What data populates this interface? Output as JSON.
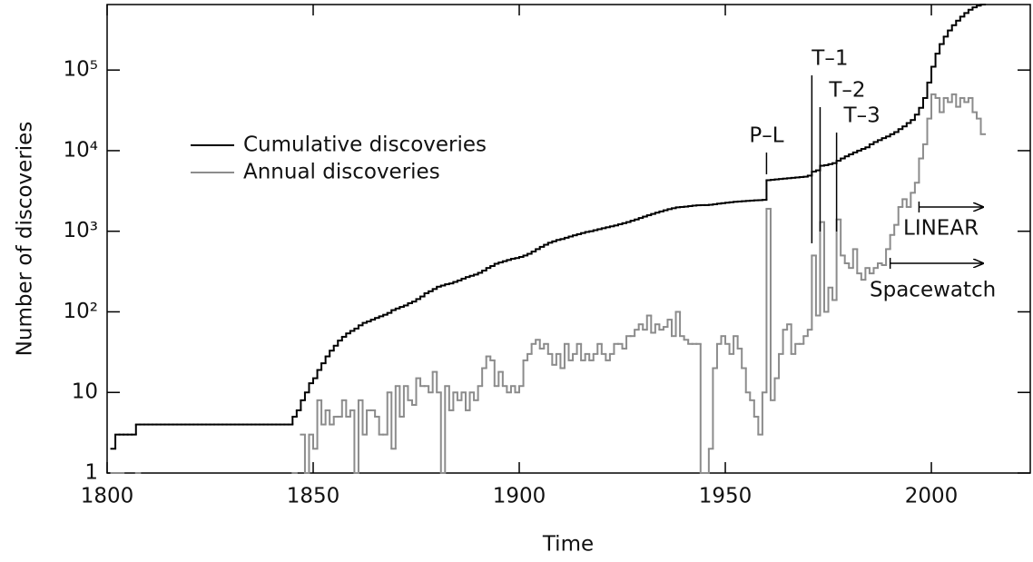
{
  "chart_data": {
    "type": "line",
    "xlabel": "Time",
    "ylabel": "Number of discoveries",
    "log_y": true,
    "xlim": [
      1800,
      2024
    ],
    "ylim": [
      1,
      650000
    ],
    "xticks": [
      1800,
      1850,
      1900,
      1950,
      2000
    ],
    "yticks": [
      1,
      10,
      {
        "value": 100,
        "label": "10²"
      },
      {
        "value": 1000,
        "label": "10³"
      },
      {
        "value": 10000,
        "label": "10⁴"
      },
      {
        "value": 100000,
        "label": "10⁵"
      }
    ],
    "legend": "upper left",
    "x": [
      1801,
      1802,
      1803,
      1804,
      1805,
      1806,
      1807,
      1808,
      1809,
      1810,
      1811,
      1812,
      1813,
      1814,
      1815,
      1816,
      1817,
      1818,
      1819,
      1820,
      1821,
      1822,
      1823,
      1824,
      1825,
      1826,
      1827,
      1828,
      1829,
      1830,
      1831,
      1832,
      1833,
      1834,
      1835,
      1836,
      1837,
      1838,
      1839,
      1840,
      1841,
      1842,
      1843,
      1844,
      1845,
      1846,
      1847,
      1848,
      1849,
      1850,
      1851,
      1852,
      1853,
      1854,
      1855,
      1856,
      1857,
      1858,
      1859,
      1860,
      1861,
      1862,
      1863,
      1864,
      1865,
      1866,
      1867,
      1868,
      1869,
      1870,
      1871,
      1872,
      1873,
      1874,
      1875,
      1876,
      1877,
      1878,
      1879,
      1880,
      1881,
      1882,
      1883,
      1884,
      1885,
      1886,
      1887,
      1888,
      1889,
      1890,
      1891,
      1892,
      1893,
      1894,
      1895,
      1896,
      1897,
      1898,
      1899,
      1900,
      1901,
      1902,
      1903,
      1904,
      1905,
      1906,
      1907,
      1908,
      1909,
      1910,
      1911,
      1912,
      1913,
      1914,
      1915,
      1916,
      1917,
      1918,
      1919,
      1920,
      1921,
      1922,
      1923,
      1924,
      1925,
      1926,
      1927,
      1928,
      1929,
      1930,
      1931,
      1932,
      1933,
      1934,
      1935,
      1936,
      1937,
      1938,
      1939,
      1940,
      1941,
      1942,
      1943,
      1944,
      1945,
      1946,
      1947,
      1948,
      1949,
      1950,
      1951,
      1952,
      1953,
      1954,
      1955,
      1956,
      1957,
      1958,
      1959,
      1960,
      1961,
      1962,
      1963,
      1964,
      1965,
      1966,
      1967,
      1968,
      1969,
      1970,
      1971,
      1972,
      1973,
      1974,
      1975,
      1976,
      1977,
      1978,
      1979,
      1980,
      1981,
      1982,
      1983,
      1984,
      1985,
      1986,
      1987,
      1988,
      1989,
      1990,
      1991,
      1992,
      1993,
      1994,
      1995,
      1996,
      1997,
      1998,
      1999,
      2000,
      2001,
      2002,
      2003,
      2004,
      2005,
      2006,
      2007,
      2008,
      2009,
      2010,
      2011,
      2012
    ],
    "series": [
      {
        "name": "Cumulative discoveries",
        "color": "#000000",
        "values": [
          2,
          3,
          3,
          3,
          3,
          3,
          4,
          4,
          4,
          4,
          4,
          4,
          4,
          4,
          4,
          4,
          4,
          4,
          4,
          4,
          4,
          4,
          4,
          4,
          4,
          4,
          4,
          4,
          4,
          4,
          4,
          4,
          4,
          4,
          4,
          4,
          4,
          4,
          4,
          4,
          4,
          4,
          4,
          4,
          5,
          6,
          8,
          10,
          13,
          15,
          19,
          23,
          28,
          33,
          38,
          44,
          49,
          54,
          58,
          62,
          68,
          73,
          76,
          80,
          84,
          88,
          92,
          97,
          105,
          110,
          115,
          120,
          128,
          134,
          144,
          155,
          170,
          180,
          192,
          205,
          212,
          220,
          225,
          235,
          245,
          258,
          270,
          280,
          290,
          305,
          325,
          350,
          370,
          395,
          410,
          425,
          440,
          455,
          465,
          480,
          500,
          525,
          560,
          600,
          640,
          680,
          720,
          750,
          780,
          800,
          830,
          860,
          890,
          920,
          950,
          980,
          1000,
          1030,
          1060,
          1090,
          1120,
          1150,
          1180,
          1220,
          1260,
          1300,
          1350,
          1400,
          1460,
          1520,
          1580,
          1640,
          1700,
          1760,
          1820,
          1880,
          1930,
          1980,
          2000,
          2020,
          2050,
          2080,
          2100,
          2110,
          2110,
          2130,
          2160,
          2200,
          2230,
          2260,
          2290,
          2320,
          2340,
          2360,
          2380,
          2400,
          2420,
          2430,
          2450,
          4300,
          4350,
          4400,
          4450,
          4500,
          4550,
          4600,
          4650,
          4700,
          4750,
          4900,
          5500,
          5700,
          6500,
          6600,
          6800,
          7000,
          7500,
          8000,
          8500,
          9000,
          9500,
          10000,
          10500,
          11000,
          12000,
          12800,
          13500,
          14300,
          15000,
          16000,
          17000,
          18500,
          20000,
          22000,
          24000,
          28000,
          34000,
          45000,
          70000,
          110000,
          160000,
          210000,
          260000,
          310000,
          360000,
          410000,
          460000,
          510000,
          560000,
          600000,
          630000,
          650000
        ]
      },
      {
        "name": "Annual discoveries",
        "color": "#8c8c8c",
        "values": [
          1,
          1,
          1,
          null,
          null,
          null,
          1,
          null,
          null,
          null,
          null,
          null,
          null,
          null,
          null,
          null,
          null,
          null,
          null,
          null,
          null,
          null,
          null,
          null,
          null,
          null,
          null,
          null,
          null,
          null,
          null,
          null,
          null,
          null,
          null,
          null,
          null,
          null,
          null,
          null,
          null,
          null,
          null,
          null,
          1,
          null,
          3,
          1,
          3,
          2,
          8,
          4,
          6,
          4,
          5,
          5,
          8,
          5,
          6,
          1,
          8,
          3,
          6,
          6,
          5,
          3,
          3,
          10,
          2,
          12,
          5,
          12,
          8,
          7,
          15,
          12,
          12,
          10,
          18,
          10,
          1,
          12,
          6,
          10,
          8,
          10,
          6,
          10,
          8,
          12,
          20,
          28,
          25,
          12,
          18,
          12,
          10,
          12,
          10,
          12,
          25,
          30,
          40,
          45,
          35,
          40,
          30,
          22,
          30,
          20,
          40,
          25,
          30,
          40,
          25,
          30,
          25,
          30,
          40,
          30,
          25,
          30,
          40,
          40,
          35,
          50,
          50,
          60,
          70,
          60,
          90,
          55,
          70,
          60,
          65,
          80,
          50,
          100,
          50,
          45,
          40,
          40,
          40,
          1,
          1,
          2,
          20,
          40,
          50,
          40,
          30,
          50,
          35,
          20,
          10,
          8,
          5,
          3,
          10,
          1900,
          8,
          15,
          30,
          60,
          70,
          30,
          40,
          40,
          50,
          60,
          500,
          90,
          1300,
          100,
          200,
          140,
          1400,
          500,
          400,
          350,
          600,
          300,
          250,
          350,
          300,
          350,
          400,
          380,
          600,
          900,
          1200,
          2000,
          2500,
          2000,
          3000,
          4000,
          8000,
          12000,
          25000,
          50000,
          45000,
          30000,
          45000,
          40000,
          50000,
          35000,
          45000,
          40000,
          45000,
          30000,
          25000,
          16000
        ]
      }
    ],
    "annotations": [
      {
        "text": "P–L",
        "x": 1960
      },
      {
        "text": "T–1",
        "x": 1971
      },
      {
        "text": "T–2",
        "x": 1973
      },
      {
        "text": "T–3",
        "x": 1977
      }
    ],
    "surveys": [
      {
        "text": "LINEAR",
        "x": 1997
      },
      {
        "text": "Spacewatch",
        "x": 1990
      }
    ]
  }
}
